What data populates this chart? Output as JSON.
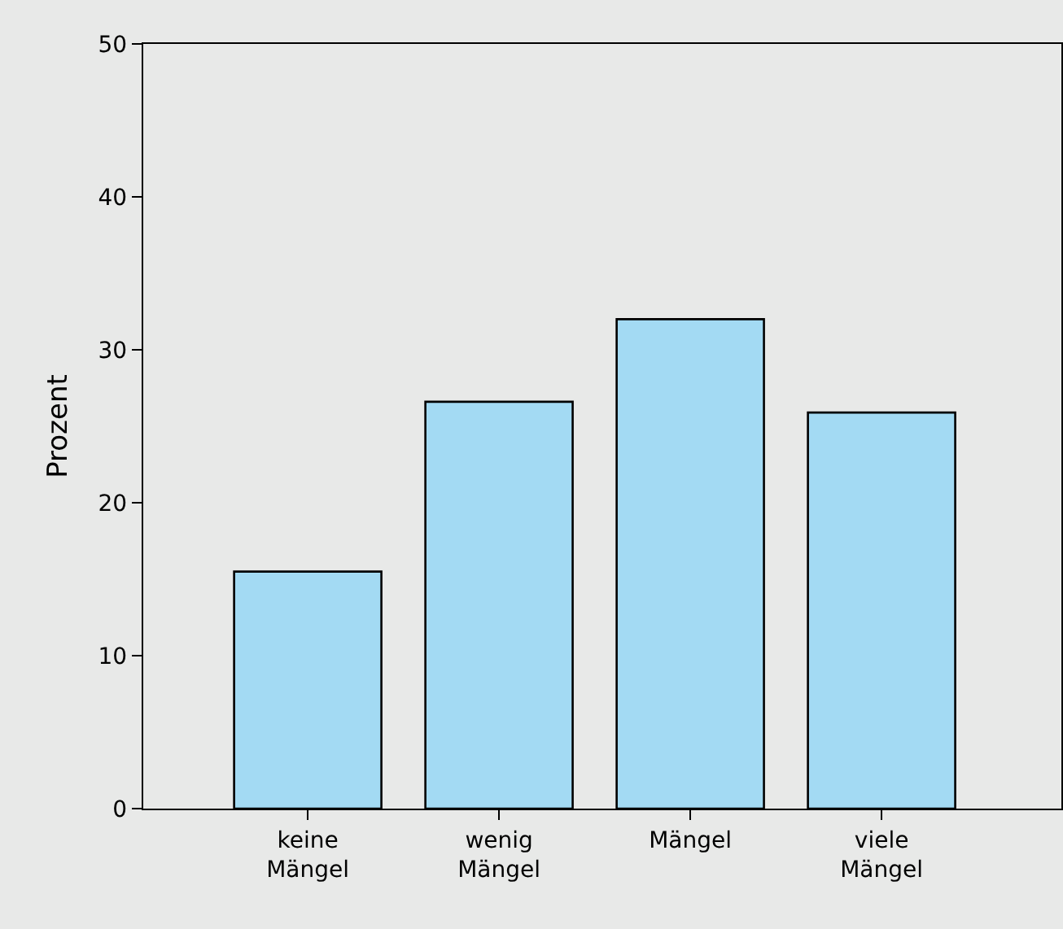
{
  "chart_data": {
    "type": "bar",
    "ylabel": "Prozent",
    "categories": [
      "keine Mängel",
      "wenig Mängel",
      "Mängel",
      "viele Mängel"
    ],
    "values": [
      15.5,
      26.6,
      32.0,
      25.9
    ],
    "color": "#a3daf3",
    "ylim": [
      0,
      50
    ],
    "yticks": [
      0,
      10,
      20,
      30,
      40,
      50
    ],
    "grid": false,
    "legend": false
  }
}
